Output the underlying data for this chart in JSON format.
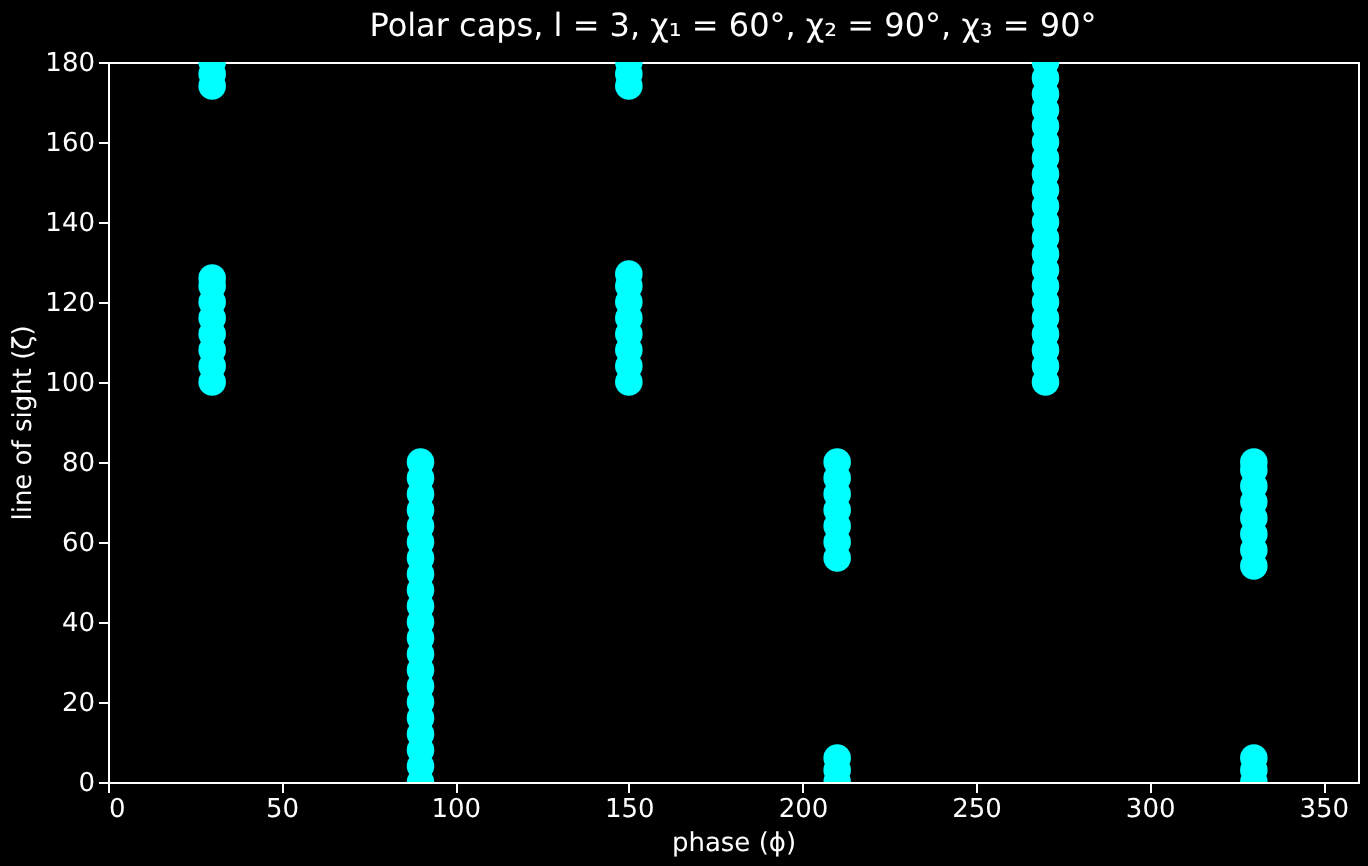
{
  "chart_data": {
    "type": "scatter",
    "title": "Polar caps, l = 3, χ₁ = 60°, χ₂ = 90°, χ₃ = 90°",
    "xlabel": "phase (ϕ)",
    "ylabel": "line of sight (ζ)",
    "series": [
      {
        "color": "#00ffff",
        "x": [
          30,
          30,
          30,
          30,
          30,
          30,
          30,
          30,
          30,
          30,
          30,
          90,
          90,
          90,
          90,
          90,
          90,
          90,
          90,
          90,
          90,
          90,
          90,
          90,
          90,
          90,
          90,
          90,
          90,
          90,
          90,
          90,
          150,
          150,
          150,
          150,
          150,
          150,
          150,
          150,
          150,
          150,
          150,
          210,
          210,
          210,
          210,
          210,
          210,
          210,
          210,
          210,
          210,
          270,
          270,
          270,
          270,
          270,
          270,
          270,
          270,
          270,
          270,
          270,
          270,
          270,
          270,
          270,
          270,
          270,
          270,
          270,
          270,
          270,
          330,
          330,
          330,
          330,
          330,
          330,
          330,
          330,
          330,
          330,
          330
        ],
        "values": [
          100,
          104,
          108,
          112,
          116,
          120,
          124,
          126,
          174,
          177,
          180,
          0,
          4,
          8,
          12,
          16,
          20,
          24,
          28,
          32,
          36,
          40,
          44,
          48,
          52,
          56,
          60,
          64,
          68,
          72,
          76,
          80,
          100,
          104,
          108,
          112,
          116,
          120,
          124,
          127,
          174,
          177,
          180,
          0,
          3,
          6,
          56,
          60,
          64,
          68,
          72,
          76,
          80,
          100,
          104,
          108,
          112,
          116,
          120,
          124,
          128,
          132,
          136,
          140,
          144,
          148,
          152,
          156,
          160,
          164,
          168,
          172,
          176,
          180,
          0,
          3,
          6,
          54,
          58,
          62,
          66,
          70,
          74,
          78,
          80
        ]
      }
    ],
    "xlim": [
      0,
      360
    ],
    "ylim": [
      0,
      180
    ],
    "xticks": [
      0,
      50,
      100,
      150,
      200,
      250,
      300,
      350
    ],
    "yticks": [
      0,
      20,
      40,
      60,
      80,
      100,
      120,
      140,
      160,
      180
    ],
    "grid": false,
    "marker": "circle"
  }
}
